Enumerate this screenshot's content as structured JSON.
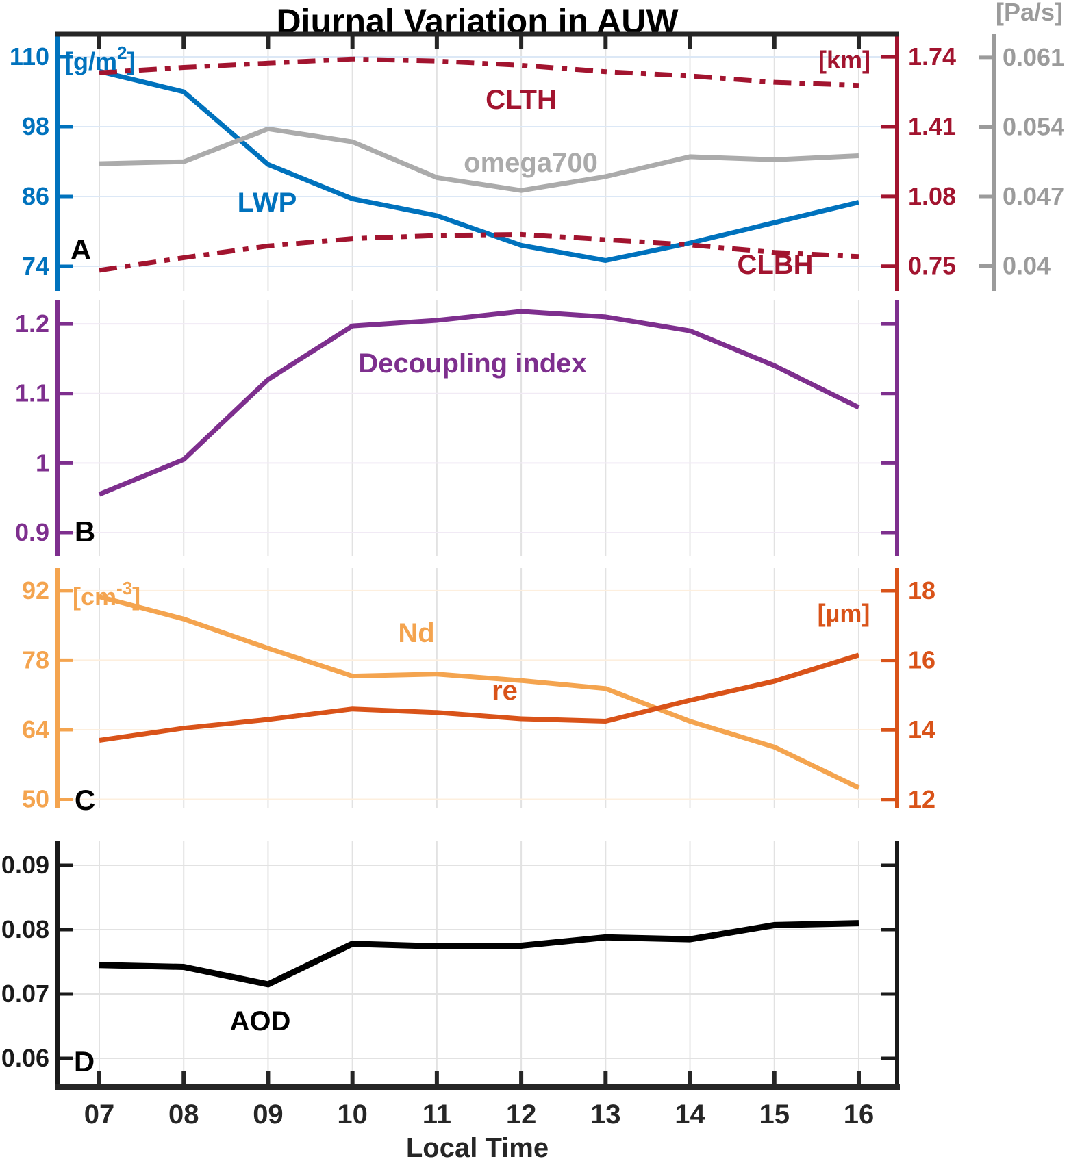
{
  "chart_data": {
    "type": "line",
    "title": "Diurnal Variation in AUW",
    "xlabel": "Local Time",
    "x_categories": [
      "07",
      "08",
      "09",
      "10",
      "11",
      "12",
      "13",
      "14",
      "15",
      "16"
    ],
    "x_values": [
      7,
      8,
      9,
      10,
      11,
      12,
      13,
      14,
      15,
      16
    ],
    "grid": true,
    "legend_position": "inline-labels",
    "colors": {
      "blue": "#0072BD",
      "dark_red": "#A2142F",
      "gray_line": "#ABABAB",
      "gray_label": "#9B9B9B",
      "purple": "#7E2F8E",
      "light_orange": "#F4A44F",
      "dark_orange": "#D95319",
      "black": "#1A1A1A",
      "axis_black": "#262626",
      "grid_gray": "#E2E2E2",
      "grid_blue_tint": "#DCE8F6",
      "grid_purple_tint": "#F1EAF5",
      "grid_orange_tint": "#FDEFDE"
    },
    "panels": [
      {
        "id": "A",
        "letter": "A",
        "grid_color": "#DCE8F6",
        "axes": [
          {
            "key": "gm2",
            "side": "left",
            "unit_pre": "[g/m",
            "unit_sup": "2",
            "unit_post": "]",
            "color": "#0072BD",
            "tick_labels": [
              "110",
              "98",
              "86",
              "74"
            ],
            "tick_values": [
              110,
              98,
              86,
              74
            ],
            "ylim": [
              69.76,
              113.88
            ]
          },
          {
            "key": "km",
            "side": "right",
            "unit_pre": "[km]",
            "unit_sup": "",
            "unit_post": "",
            "color": "#A2142F",
            "tick_labels": [
              "1.74",
              "1.41",
              "1.08",
              "0.75"
            ],
            "tick_values": [
              1.74,
              1.41,
              1.08,
              0.75
            ],
            "ylim": [
              0.6325,
              1.8471
            ]
          },
          {
            "key": "pas",
            "side": "far_right",
            "unit_pre": "[Pa/s]",
            "unit_sup": "",
            "unit_post": "",
            "color": "#9B9B9B",
            "tick_labels": [
              "0.061",
              "0.054",
              "0.047",
              "0.04"
            ],
            "tick_values": [
              0.061,
              0.054,
              0.047,
              0.04
            ],
            "ylim": [
              0.03748,
              0.06334
            ]
          }
        ],
        "series": [
          {
            "name": "LWP",
            "axis": "gm2",
            "color": "#0072BD",
            "line_style": "solid",
            "line_width": 7,
            "values": [
              107.5,
              104,
              91.5,
              85.6,
              82.7,
              77.6,
              75,
              78,
              81.5,
              85
            ]
          },
          {
            "name": "CLTH",
            "axis": "km",
            "color": "#A2142F",
            "line_style": "dashdot",
            "line_width": 7,
            "values": [
              1.665,
              1.69,
              1.71,
              1.73,
              1.72,
              1.7,
              1.67,
              1.65,
              1.62,
              1.605
            ]
          },
          {
            "name": "CLBH",
            "axis": "km",
            "color": "#A2142F",
            "line_style": "dashdot",
            "line_width": 7,
            "values": [
              0.73,
              0.79,
              0.845,
              0.88,
              0.895,
              0.9,
              0.875,
              0.85,
              0.815,
              0.795
            ]
          },
          {
            "name": "omega700",
            "axis": "pas",
            "color": "#ABABAB",
            "line_style": "solid",
            "line_width": 7,
            "values": [
              0.0503,
              0.0505,
              0.0538,
              0.0525,
              0.0489,
              0.0476,
              0.049,
              0.051,
              0.0507,
              0.0511
            ]
          }
        ]
      },
      {
        "id": "B",
        "letter": "B",
        "grid_color": "#F1EAF5",
        "axes": [
          {
            "key": "di",
            "side": "left",
            "unit_pre": "",
            "unit_sup": "",
            "unit_post": "",
            "color": "#7E2F8E",
            "tick_labels": [
              "1.2",
              "1.1",
              "1",
              "0.9"
            ],
            "tick_values": [
              1.2,
              1.1,
              1.0,
              0.9
            ],
            "ylim": [
              0.8666,
              1.2345
            ]
          },
          {
            "key": "di_r",
            "side": "right",
            "unit_pre": "",
            "unit_sup": "",
            "unit_post": "",
            "color": "#7E2F8E",
            "tick_labels": [],
            "tick_values": [
              1.2,
              1.1,
              1.0,
              0.9
            ],
            "ylim": [
              0.8666,
              1.2345
            ]
          }
        ],
        "series": [
          {
            "name": "Decoupling index",
            "axis": "di",
            "color": "#7E2F8E",
            "line_style": "solid",
            "line_width": 7,
            "values": [
              0.955,
              1.005,
              1.12,
              1.197,
              1.205,
              1.218,
              1.21,
              1.19,
              1.14,
              1.08
            ]
          }
        ]
      },
      {
        "id": "C",
        "letter": "C",
        "grid_color": "#FDEFDE",
        "axes": [
          {
            "key": "cm3",
            "side": "left",
            "unit_pre": "[cm",
            "unit_sup": "-3",
            "unit_post": "]",
            "color": "#F4A44F",
            "tick_labels": [
              "92",
              "78",
              "64",
              "50"
            ],
            "tick_values": [
              92,
              78,
              64,
              50
            ],
            "ylim": [
              48.27,
              96.54
            ]
          },
          {
            "key": "um",
            "side": "right",
            "unit_pre": "[µm]",
            "unit_sup": "",
            "unit_post": "",
            "color": "#D95319",
            "tick_labels": [
              "18",
              "16",
              "14",
              "12"
            ],
            "tick_values": [
              18,
              16,
              14,
              12
            ],
            "ylim": [
              11.76,
              18.65
            ]
          }
        ],
        "series": [
          {
            "name": "Nd",
            "axis": "cm3",
            "color": "#F4A44F",
            "line_style": "solid",
            "line_width": 7,
            "values": [
              90.8,
              86.3,
              80.4,
              74.8,
              75.2,
              73.9,
              72.3,
              65.7,
              60.5,
              52.3
            ]
          },
          {
            "name": "re",
            "axis": "um",
            "color": "#D95319",
            "line_style": "solid",
            "line_width": 7,
            "values": [
              13.7,
              14.05,
              14.3,
              14.6,
              14.5,
              14.32,
              14.25,
              14.85,
              15.4,
              16.15
            ]
          }
        ]
      },
      {
        "id": "D",
        "letter": "D",
        "grid_color": "#E2E2E2",
        "axes": [
          {
            "key": "aod",
            "side": "left",
            "unit_pre": "",
            "unit_sup": "",
            "unit_post": "",
            "color": "#1A1A1A",
            "tick_labels": [
              "0.09",
              "0.08",
              "0.07",
              "0.06"
            ],
            "tick_values": [
              0.09,
              0.08,
              0.07,
              0.06
            ],
            "ylim": [
              0.05553,
              0.09372
            ]
          },
          {
            "key": "aod_r",
            "side": "right",
            "unit_pre": "",
            "unit_sup": "",
            "unit_post": "",
            "color": "#1A1A1A",
            "tick_labels": [],
            "tick_values": [
              0.09,
              0.08,
              0.07,
              0.06
            ],
            "ylim": [
              0.05553,
              0.09372
            ]
          }
        ],
        "series": [
          {
            "name": "AOD",
            "axis": "aod",
            "color": "#000000",
            "line_style": "solid",
            "line_width": 9,
            "values": [
              0.0745,
              0.0742,
              0.0715,
              0.0778,
              0.0774,
              0.0775,
              0.0788,
              0.0785,
              0.0807,
              0.081
            ]
          }
        ]
      }
    ]
  }
}
